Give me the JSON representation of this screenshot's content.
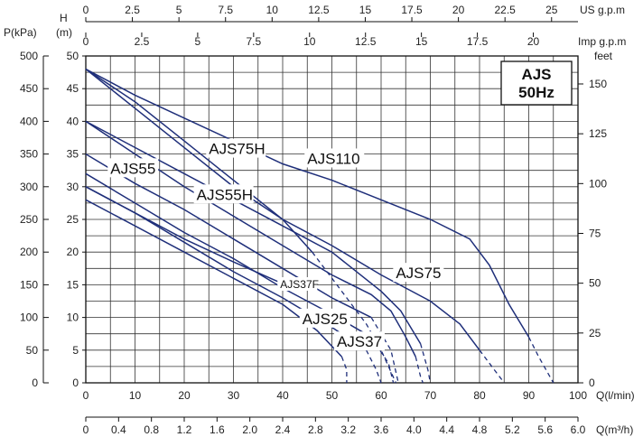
{
  "chart_data": {
    "type": "line",
    "title_box": [
      "AJS",
      "50Hz"
    ],
    "x": {
      "label": "Q(l/min)",
      "range": [
        0,
        100
      ],
      "ticks": [
        0,
        10,
        20,
        30,
        40,
        50,
        60,
        70,
        80,
        90,
        100
      ]
    },
    "x_m3h": {
      "label": "Q(m³/h)",
      "range": [
        0,
        6.0
      ],
      "ticks": [
        "0",
        "0.4",
        "0.8",
        "1.2",
        "1.6",
        "2.0",
        "2.4",
        "2.8",
        "3.2",
        "3.6",
        "4.0",
        "4.4",
        "4.8",
        "5.2",
        "5.6",
        "6.0"
      ]
    },
    "x_us_gpm": {
      "label": "US g.p.m",
      "ticks": [
        "0",
        "2.5",
        "5",
        "7.5",
        "10",
        "12.5",
        "15",
        "17.5",
        "20",
        "22.5",
        "25"
      ]
    },
    "x_imp_gpm": {
      "label": "Imp g.p.m",
      "ticks": [
        "0",
        "2.5",
        "5",
        "7.5",
        "10",
        "12.5",
        "15",
        "17.5",
        "20"
      ]
    },
    "y_head": {
      "label_top": "H",
      "label_unit": "(m)",
      "range": [
        0,
        50
      ],
      "ticks": [
        0,
        5,
        10,
        15,
        20,
        25,
        30,
        35,
        40,
        45,
        50
      ]
    },
    "y_pressure": {
      "label": "P(kPa)",
      "ticks": [
        0,
        50,
        100,
        150,
        200,
        250,
        300,
        350,
        400,
        450,
        500
      ]
    },
    "y_feet": {
      "label": "feet",
      "ticks": [
        0,
        25,
        50,
        75,
        100,
        125,
        150
      ]
    },
    "series": [
      {
        "name": "AJS25",
        "points": [
          [
            0,
            28
          ],
          [
            10,
            24
          ],
          [
            20,
            20
          ],
          [
            30,
            16
          ],
          [
            40,
            12
          ],
          [
            47,
            8
          ],
          [
            52,
            4
          ]
        ],
        "dashed": [
          [
            52,
            4
          ],
          [
            53,
            2
          ],
          [
            53,
            0
          ]
        ],
        "label_xy": [
          44,
          9
        ]
      },
      {
        "name": "AJS37",
        "points": [
          [
            0,
            30
          ],
          [
            10,
            26
          ],
          [
            20,
            21.5
          ],
          [
            30,
            17
          ],
          [
            40,
            13
          ],
          [
            50,
            8.5
          ],
          [
            57,
            5
          ]
        ],
        "dashed": [
          [
            57,
            5
          ],
          [
            59,
            2
          ],
          [
            60,
            0
          ]
        ],
        "label_xy": [
          51,
          5.5
        ]
      },
      {
        "name": "AJS37F",
        "points": [
          [
            0,
            30
          ],
          [
            10,
            26
          ],
          [
            20,
            22
          ],
          [
            30,
            18.5
          ],
          [
            39,
            15.5
          ]
        ],
        "dashed": [],
        "label_xy": [
          39.5,
          14.5
        ]
      },
      {
        "name": "AJS55",
        "points": [
          [
            0,
            32
          ],
          [
            10,
            27.5
          ],
          [
            20,
            23
          ],
          [
            30,
            19
          ],
          [
            40,
            14.5
          ],
          [
            50,
            10.5
          ],
          [
            58,
            7
          ]
        ],
        "dashed": [
          [
            58,
            7
          ],
          [
            61.5,
            3
          ],
          [
            62.5,
            0
          ]
        ],
        "label_xy": [
          5,
          32
        ]
      },
      {
        "name": "AJS55H",
        "points": [
          [
            0,
            35
          ],
          [
            10,
            30.5
          ],
          [
            20,
            26.5
          ],
          [
            30,
            22
          ],
          [
            40,
            17.5
          ],
          [
            50,
            13
          ],
          [
            58,
            10
          ]
        ],
        "dashed": [
          [
            58,
            10
          ],
          [
            62,
            5
          ],
          [
            63.5,
            0
          ]
        ],
        "label_xy": [
          22.5,
          28
        ]
      },
      {
        "name": "AJS75",
        "points": [
          [
            0,
            40
          ],
          [
            10,
            36
          ],
          [
            20,
            32
          ],
          [
            30,
            28
          ],
          [
            40,
            24
          ],
          [
            50,
            20
          ],
          [
            60,
            14
          ],
          [
            64,
            11
          ],
          [
            68,
            6
          ]
        ],
        "dashed": [
          [
            68,
            6
          ],
          [
            69.5,
            2
          ],
          [
            70,
            0
          ]
        ],
        "label_xy": [
          63,
          16
        ]
      },
      {
        "name": "AJS75H",
        "points": [
          [
            0,
            48
          ],
          [
            10,
            43
          ],
          [
            20,
            37
          ],
          [
            30,
            31
          ],
          [
            40,
            25
          ],
          [
            46,
            20
          ]
        ],
        "dashed": [
          [
            46,
            20
          ],
          [
            52,
            14
          ],
          [
            57,
            9
          ],
          [
            60,
            5
          ],
          [
            63,
            0
          ]
        ],
        "label_xy": [
          25,
          35
        ]
      },
      {
        "name": "AJS110",
        "points": [
          [
            0,
            48
          ],
          [
            10,
            44
          ],
          [
            20,
            40.5
          ],
          [
            30,
            37
          ],
          [
            40,
            33.5
          ],
          [
            50,
            31
          ],
          [
            60,
            28
          ],
          [
            70,
            25
          ],
          [
            78,
            22
          ],
          [
            82,
            18
          ],
          [
            86,
            12
          ],
          [
            90,
            7
          ]
        ],
        "dashed": [
          [
            90,
            7
          ],
          [
            92,
            4
          ],
          [
            95,
            0
          ]
        ],
        "label_xy": [
          45,
          33.5
        ]
      },
      {
        "name": "",
        "points": [
          [
            0,
            40
          ],
          [
            10,
            35
          ],
          [
            20,
            30
          ],
          [
            30,
            25.5
          ],
          [
            40,
            21
          ],
          [
            50,
            16.5
          ],
          [
            58,
            13.5
          ],
          [
            62,
            11
          ],
          [
            65,
            7
          ],
          [
            67,
            4
          ]
        ],
        "dashed": [
          [
            67,
            4
          ],
          [
            68,
            1
          ],
          [
            68.5,
            0
          ]
        ],
        "label_xy": null
      },
      {
        "name": "",
        "points": [
          [
            0,
            48
          ],
          [
            10,
            42
          ],
          [
            20,
            36
          ],
          [
            30,
            30
          ],
          [
            40,
            25
          ],
          [
            50,
            21
          ],
          [
            60,
            16.5
          ],
          [
            70,
            12.5
          ],
          [
            76,
            9
          ],
          [
            80,
            5
          ]
        ],
        "dashed": [
          [
            80,
            5
          ],
          [
            83,
            2
          ],
          [
            85,
            0
          ]
        ],
        "label_xy": null
      }
    ],
    "grid": true,
    "line_color": "#1f2f7a"
  }
}
